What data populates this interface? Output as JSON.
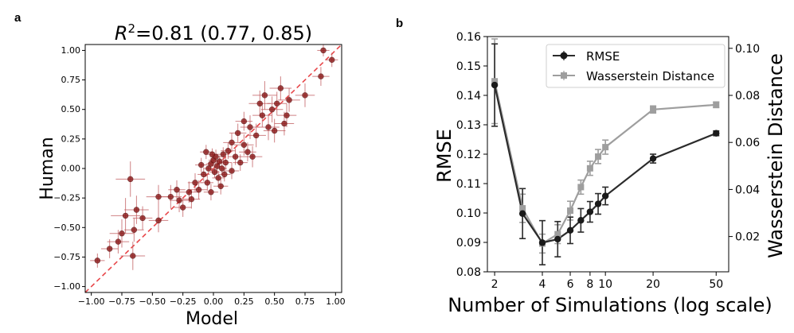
{
  "chart_data": [
    {
      "panel": "a",
      "type": "scatter",
      "title": "R²=0.81 (0.77, 0.85)",
      "title_prefix": "R",
      "title_sup": "2",
      "title_rest": "=0.81 (0.77, 0.85)",
      "xlabel": "Model",
      "ylabel": "Human",
      "xlim": [
        -1.05,
        1.05
      ],
      "ylim": [
        -1.05,
        1.05
      ],
      "xticks": [
        -1.0,
        -0.75,
        -0.5,
        -0.25,
        0.0,
        0.25,
        0.5,
        0.75,
        1.0
      ],
      "xtick_labels": [
        "−1.00",
        "−0.75",
        "−0.50",
        "−0.25",
        "0.00",
        "0.25",
        "0.50",
        "0.75",
        "1.00"
      ],
      "yticks": [
        -1.0,
        -0.75,
        -0.5,
        -0.25,
        0.0,
        0.25,
        0.5,
        0.75,
        1.0
      ],
      "ytick_labels": [
        "−1.00",
        "−0.75",
        "−0.50",
        "−0.25",
        "0.00",
        "0.25",
        "0.50",
        "0.75",
        "1.00"
      ],
      "reference_line": "y = x (dashed red)",
      "point_color": "#8b1a1a",
      "line_color": "#e8474a",
      "points": [
        {
          "x": -0.95,
          "y": -0.78,
          "ex": 0.06,
          "ey": 0.06
        },
        {
          "x": -0.85,
          "y": -0.68,
          "ex": 0.07,
          "ey": 0.08
        },
        {
          "x": -0.78,
          "y": -0.62,
          "ex": 0.09,
          "ey": 0.1
        },
        {
          "x": -0.75,
          "y": -0.55,
          "ex": 0.1,
          "ey": 0.12
        },
        {
          "x": -0.72,
          "y": -0.4,
          "ex": 0.12,
          "ey": 0.15
        },
        {
          "x": -0.66,
          "y": -0.74,
          "ex": 0.1,
          "ey": 0.12
        },
        {
          "x": -0.65,
          "y": -0.52,
          "ex": 0.08,
          "ey": 0.1
        },
        {
          "x": -0.63,
          "y": -0.35,
          "ex": 0.1,
          "ey": 0.12
        },
        {
          "x": -0.58,
          "y": -0.42,
          "ex": 0.08,
          "ey": 0.1
        },
        {
          "x": -0.68,
          "y": -0.09,
          "ex": 0.12,
          "ey": 0.15
        },
        {
          "x": -0.45,
          "y": -0.24,
          "ex": 0.1,
          "ey": 0.1
        },
        {
          "x": -0.35,
          "y": -0.24,
          "ex": 0.09,
          "ey": 0.1
        },
        {
          "x": -0.28,
          "y": -0.27,
          "ex": 0.08,
          "ey": 0.1
        },
        {
          "x": -0.45,
          "y": -0.44,
          "ex": 0.08,
          "ey": 0.1
        },
        {
          "x": -0.3,
          "y": -0.18,
          "ex": 0.07,
          "ey": 0.08
        },
        {
          "x": -0.25,
          "y": -0.33,
          "ex": 0.07,
          "ey": 0.08
        },
        {
          "x": -0.2,
          "y": -0.2,
          "ex": 0.08,
          "ey": 0.09
        },
        {
          "x": -0.15,
          "y": -0.12,
          "ex": 0.06,
          "ey": 0.08
        },
        {
          "x": -0.12,
          "y": -0.18,
          "ex": 0.07,
          "ey": 0.08
        },
        {
          "x": -0.05,
          "y": -0.12,
          "ex": 0.05,
          "ey": 0.07
        },
        {
          "x": -0.02,
          "y": -0.2,
          "ex": 0.06,
          "ey": 0.07
        },
        {
          "x": -0.08,
          "y": -0.05,
          "ex": 0.05,
          "ey": 0.06
        },
        {
          "x": -0.04,
          "y": 0.0,
          "ex": 0.04,
          "ey": 0.05
        },
        {
          "x": -0.02,
          "y": 0.04,
          "ex": 0.04,
          "ey": 0.05
        },
        {
          "x": 0.0,
          "y": 0.07,
          "ex": 0.04,
          "ey": 0.05
        },
        {
          "x": 0.02,
          "y": 0.1,
          "ex": 0.05,
          "ey": 0.06
        },
        {
          "x": 0.01,
          "y": -0.03,
          "ex": 0.04,
          "ey": 0.05
        },
        {
          "x": 0.03,
          "y": 0.02,
          "ex": 0.04,
          "ey": 0.05
        },
        {
          "x": 0.05,
          "y": 0.06,
          "ex": 0.04,
          "ey": 0.05
        },
        {
          "x": 0.04,
          "y": -0.08,
          "ex": 0.05,
          "ey": 0.06
        },
        {
          "x": 0.07,
          "y": 0.0,
          "ex": 0.04,
          "ey": 0.05
        },
        {
          "x": 0.08,
          "y": 0.12,
          "ex": 0.05,
          "ey": 0.06
        },
        {
          "x": 0.1,
          "y": 0.05,
          "ex": 0.05,
          "ey": 0.06
        },
        {
          "x": 0.12,
          "y": 0.15,
          "ex": 0.06,
          "ey": 0.07
        },
        {
          "x": 0.09,
          "y": -0.05,
          "ex": 0.05,
          "ey": 0.06
        },
        {
          "x": -0.06,
          "y": 0.14,
          "ex": 0.05,
          "ey": 0.06
        },
        {
          "x": -0.01,
          "y": 0.12,
          "ex": 0.04,
          "ey": 0.05
        },
        {
          "x": 0.15,
          "y": 0.22,
          "ex": 0.07,
          "ey": 0.08
        },
        {
          "x": 0.18,
          "y": 0.1,
          "ex": 0.06,
          "ey": 0.07
        },
        {
          "x": 0.2,
          "y": 0.3,
          "ex": 0.07,
          "ey": 0.08
        },
        {
          "x": 0.25,
          "y": 0.2,
          "ex": 0.08,
          "ey": 0.09
        },
        {
          "x": 0.28,
          "y": 0.14,
          "ex": 0.07,
          "ey": 0.08
        },
        {
          "x": 0.3,
          "y": 0.35,
          "ex": 0.08,
          "ey": 0.1
        },
        {
          "x": 0.35,
          "y": 0.28,
          "ex": 0.08,
          "ey": 0.1
        },
        {
          "x": 0.38,
          "y": 0.55,
          "ex": 0.09,
          "ey": 0.11
        },
        {
          "x": 0.4,
          "y": 0.45,
          "ex": 0.08,
          "ey": 0.1
        },
        {
          "x": 0.42,
          "y": 0.62,
          "ex": 0.1,
          "ey": 0.12
        },
        {
          "x": 0.45,
          "y": 0.35,
          "ex": 0.09,
          "ey": 0.11
        },
        {
          "x": 0.48,
          "y": 0.5,
          "ex": 0.09,
          "ey": 0.11
        },
        {
          "x": 0.52,
          "y": 0.55,
          "ex": 0.08,
          "ey": 0.1
        },
        {
          "x": 0.55,
          "y": 0.68,
          "ex": 0.09,
          "ey": 0.1
        },
        {
          "x": 0.58,
          "y": 0.38,
          "ex": 0.08,
          "ey": 0.1
        },
        {
          "x": 0.62,
          "y": 0.58,
          "ex": 0.09,
          "ey": 0.1
        },
        {
          "x": 0.75,
          "y": 0.62,
          "ex": 0.08,
          "ey": 0.1
        },
        {
          "x": 0.88,
          "y": 0.78,
          "ex": 0.07,
          "ey": 0.08
        },
        {
          "x": 0.9,
          "y": 1.0,
          "ex": 0.05,
          "ey": 0.05
        },
        {
          "x": 0.97,
          "y": 0.92,
          "ex": 0.05,
          "ey": 0.06
        },
        {
          "x": 0.25,
          "y": 0.4,
          "ex": 0.07,
          "ey": 0.08
        },
        {
          "x": 0.32,
          "y": 0.1,
          "ex": 0.08,
          "ey": 0.09
        },
        {
          "x": 0.15,
          "y": -0.02,
          "ex": 0.06,
          "ey": 0.07
        },
        {
          "x": -0.1,
          "y": 0.03,
          "ex": 0.05,
          "ey": 0.06
        },
        {
          "x": 0.06,
          "y": -0.15,
          "ex": 0.06,
          "ey": 0.07
        },
        {
          "x": -0.18,
          "y": -0.26,
          "ex": 0.07,
          "ey": 0.08
        },
        {
          "x": 0.22,
          "y": 0.05,
          "ex": 0.06,
          "ey": 0.07
        },
        {
          "x": 0.5,
          "y": 0.32,
          "ex": 0.09,
          "ey": 0.1
        },
        {
          "x": 0.6,
          "y": 0.45,
          "ex": 0.08,
          "ey": 0.1
        }
      ]
    },
    {
      "panel": "b",
      "type": "line",
      "xscale": "log",
      "xlabel": "Number of Simulations (log scale)",
      "ylabel": "RMSE",
      "y2label": "Wasserstein Distance",
      "xlim": [
        1.8,
        60
      ],
      "ylim": [
        0.08,
        0.16
      ],
      "y2lim": [
        0.005,
        0.105
      ],
      "xticks": [
        2,
        4,
        6,
        8,
        10,
        20,
        50
      ],
      "xtick_labels": [
        "2",
        "4",
        "6",
        "8",
        "10",
        "20",
        "50"
      ],
      "yticks": [
        0.08,
        0.09,
        0.1,
        0.11,
        0.12,
        0.13,
        0.14,
        0.15,
        0.16
      ],
      "ytick_labels": [
        "0.08",
        "0.09",
        "0.10",
        "0.11",
        "0.12",
        "0.13",
        "0.14",
        "0.15",
        "0.16"
      ],
      "y2ticks": [
        0.02,
        0.04,
        0.06,
        0.08,
        0.1
      ],
      "y2tick_labels": [
        "0.02",
        "0.04",
        "0.06",
        "0.08",
        "0.10"
      ],
      "x": [
        2,
        3,
        4,
        5,
        6,
        7,
        8,
        9,
        10,
        20,
        50
      ],
      "series": [
        {
          "name": "RMSE",
          "axis": "left",
          "color": "#2b2b2b",
          "marker": "circle",
          "values": [
            0.1435,
            0.0998,
            0.0899,
            0.0911,
            0.0941,
            0.0975,
            0.1004,
            0.1031,
            0.1058,
            0.1185,
            0.1271
          ],
          "errors": [
            0.014,
            0.0085,
            0.0075,
            0.006,
            0.0045,
            0.004,
            0.0035,
            0.0035,
            0.003,
            0.0015,
            0.0008
          ]
        },
        {
          "name": "Wasserstein Distance",
          "axis": "right",
          "color": "#9e9e9e",
          "marker": "square",
          "values": [
            0.086,
            0.032,
            0.017,
            0.021,
            0.031,
            0.041,
            0.049,
            0.054,
            0.058,
            0.074,
            0.076
          ],
          "errors": [
            0.018,
            0.006,
            0.004,
            0.004,
            0.004,
            0.003,
            0.003,
            0.003,
            0.003,
            0.0015,
            0.0012
          ]
        }
      ],
      "legend": "top-right"
    }
  ],
  "panel_labels": {
    "a": "a",
    "b": "b"
  }
}
